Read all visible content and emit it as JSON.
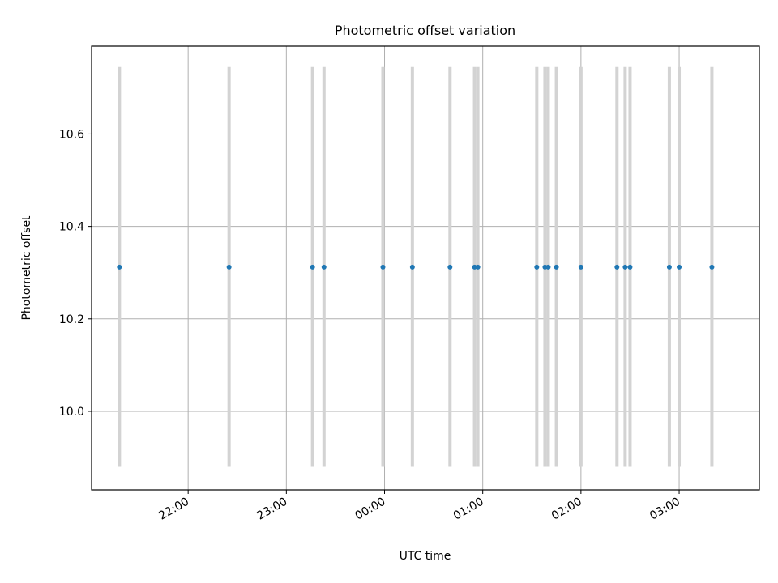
{
  "chart_data": {
    "type": "scatter",
    "title": "Photometric offset variation",
    "xlabel": "UTC time",
    "ylabel": "Photometric offset",
    "x_axis_kind": "time",
    "xlim": [
      "21:01",
      "03:49"
    ],
    "ylim": [
      9.83,
      10.79
    ],
    "x_ticks": [
      "22:00",
      "23:00",
      "00:00",
      "01:00",
      "02:00",
      "03:00"
    ],
    "y_ticks": [
      10.0,
      10.2,
      10.4,
      10.6
    ],
    "grid": true,
    "point_color": "#1f77b4",
    "errorbar_color": "#d3d3d3",
    "points": [
      {
        "time": "21:18",
        "value": 10.312,
        "err_low": 9.88,
        "err_high": 10.745
      },
      {
        "time": "22:25",
        "value": 10.312,
        "err_low": 9.88,
        "err_high": 10.745
      },
      {
        "time": "23:16",
        "value": 10.312,
        "err_low": 9.88,
        "err_high": 10.745
      },
      {
        "time": "23:23",
        "value": 10.312,
        "err_low": 9.88,
        "err_high": 10.745
      },
      {
        "time": "23:59",
        "value": 10.312,
        "err_low": 9.88,
        "err_high": 10.745
      },
      {
        "time": "00:17",
        "value": 10.312,
        "err_low": 9.88,
        "err_high": 10.745
      },
      {
        "time": "00:40",
        "value": 10.312,
        "err_low": 9.88,
        "err_high": 10.745
      },
      {
        "time": "00:55",
        "value": 10.312,
        "err_low": 9.88,
        "err_high": 10.745
      },
      {
        "time": "00:57",
        "value": 10.312,
        "err_low": 9.88,
        "err_high": 10.745
      },
      {
        "time": "01:33",
        "value": 10.312,
        "err_low": 9.88,
        "err_high": 10.745
      },
      {
        "time": "01:38",
        "value": 10.312,
        "err_low": 9.88,
        "err_high": 10.745
      },
      {
        "time": "01:40",
        "value": 10.312,
        "err_low": 9.88,
        "err_high": 10.745
      },
      {
        "time": "01:45",
        "value": 10.312,
        "err_low": 9.88,
        "err_high": 10.745
      },
      {
        "time": "02:00",
        "value": 10.312,
        "err_low": 9.88,
        "err_high": 10.745
      },
      {
        "time": "02:22",
        "value": 10.312,
        "err_low": 9.88,
        "err_high": 10.745
      },
      {
        "time": "02:27",
        "value": 10.312,
        "err_low": 9.88,
        "err_high": 10.745
      },
      {
        "time": "02:30",
        "value": 10.312,
        "err_low": 9.88,
        "err_high": 10.745
      },
      {
        "time": "02:54",
        "value": 10.312,
        "err_low": 9.88,
        "err_high": 10.745
      },
      {
        "time": "03:00",
        "value": 10.312,
        "err_low": 9.88,
        "err_high": 10.745
      },
      {
        "time": "03:20",
        "value": 10.312,
        "err_low": 9.88,
        "err_high": 10.745
      }
    ]
  }
}
